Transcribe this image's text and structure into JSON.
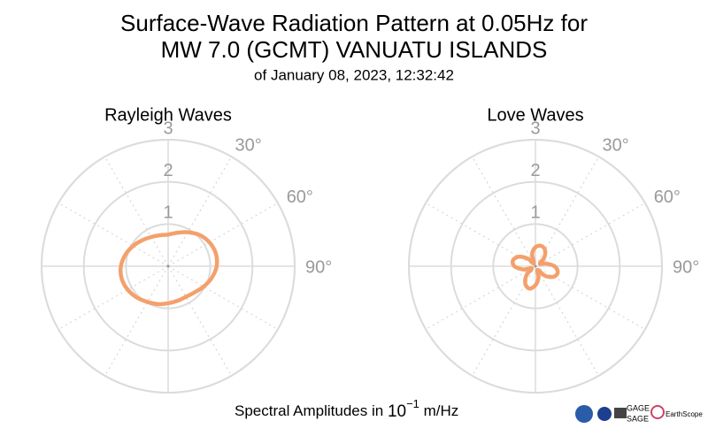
{
  "title": [
    "Surface-Wave Radiation Pattern at 0.05Hz for",
    "MW 7.0 (GCMT) VANUATU ISLANDS"
  ],
  "subtitle": "of January 08, 2023, 12:32:42",
  "caption": {
    "text": "Spectral Amplitudes in",
    "base": "10",
    "exponent": "−1",
    "unit": "m/Hz"
  },
  "logos": [
    "GAGE",
    "SAGE",
    "EarthScope"
  ],
  "chart_data": [
    {
      "type": "polar",
      "title": "Rayleigh Waves",
      "color": "#f4a06b",
      "theta": [
        0,
        15,
        30,
        45,
        60,
        75,
        90,
        105,
        120,
        135,
        150,
        165,
        180,
        195,
        210,
        225,
        240,
        255,
        270,
        285,
        300,
        315,
        330,
        345
      ],
      "values": [
        0.75,
        0.82,
        0.93,
        1.05,
        1.13,
        1.17,
        1.15,
        1.07,
        0.97,
        0.88,
        0.84,
        0.85,
        0.88,
        0.93,
        0.98,
        1.05,
        1.11,
        1.14,
        1.12,
        1.05,
        0.96,
        0.87,
        0.8,
        0.76
      ],
      "rlim": [
        0,
        3
      ],
      "rticks": [
        1,
        2,
        3
      ],
      "thetagrid": [
        0,
        30,
        60,
        90,
        120,
        150,
        180,
        210,
        240,
        270,
        300,
        330
      ],
      "thetaticks": [
        {
          "value": 30,
          "label": "30°"
        },
        {
          "value": 60,
          "label": "60°"
        },
        {
          "value": 90,
          "label": "90°"
        }
      ]
    },
    {
      "type": "polar",
      "title": "Love Waves",
      "color": "#f4a06b",
      "theta": [
        0,
        15,
        30,
        45,
        60,
        75,
        90,
        105,
        120,
        135,
        150,
        165,
        180,
        195,
        210,
        225,
        240,
        255,
        270,
        285,
        300,
        315,
        330,
        345
      ],
      "values": [
        0.45,
        0.5,
        0.45,
        0.3,
        0.12,
        0.25,
        0.45,
        0.55,
        0.5,
        0.32,
        0.1,
        0.28,
        0.45,
        0.55,
        0.48,
        0.3,
        0.1,
        0.3,
        0.5,
        0.55,
        0.45,
        0.25,
        0.08,
        0.3
      ],
      "rlim": [
        0,
        3
      ],
      "rticks": [
        1,
        2,
        3
      ],
      "thetagrid": [
        0,
        30,
        60,
        90,
        120,
        150,
        180,
        210,
        240,
        270,
        300,
        330
      ],
      "thetaticks": [
        {
          "value": 30,
          "label": "30°"
        },
        {
          "value": 60,
          "label": "60°"
        },
        {
          "value": 90,
          "label": "90°"
        }
      ]
    }
  ]
}
